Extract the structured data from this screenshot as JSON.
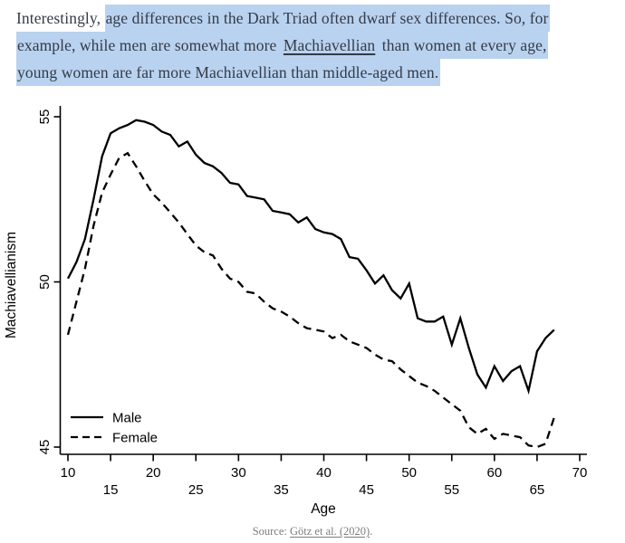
{
  "article": {
    "highlight_color": "#b9d2ef",
    "text_color": "#333b47",
    "lines": [
      {
        "segments": [
          {
            "text": "Interestingly, ",
            "highlight": false,
            "link": false
          },
          {
            "text": "age differences in the Dark Triad often dwarf sex differences. So, for",
            "highlight": true,
            "link": false
          }
        ]
      },
      {
        "segments": [
          {
            "text": "example, while men are somewhat more ",
            "highlight": true,
            "link": false
          },
          {
            "text": "Machiavellian",
            "highlight": true,
            "link": true
          },
          {
            "text": " than women at every age,",
            "highlight": true,
            "link": false
          }
        ]
      },
      {
        "segments": [
          {
            "text": "young women are far more Machiavellian than middle-aged men.",
            "highlight": true,
            "link": false
          }
        ]
      }
    ]
  },
  "chart_data": {
    "type": "line",
    "title": "",
    "xlabel": "Age",
    "ylabel": "Machiavellianism",
    "xlim": [
      10,
      70
    ],
    "ylim": [
      44.8,
      55.3
    ],
    "xticks": [
      10,
      15,
      20,
      25,
      30,
      35,
      40,
      45,
      50,
      55,
      60,
      65,
      70
    ],
    "yticks": [
      45,
      50,
      55
    ],
    "grid": false,
    "legend_position": "bottom-left",
    "line_color": "#000000",
    "x": [
      10,
      11,
      12,
      13,
      14,
      15,
      16,
      17,
      18,
      19,
      20,
      21,
      22,
      23,
      24,
      25,
      26,
      27,
      28,
      29,
      30,
      31,
      32,
      33,
      34,
      35,
      36,
      37,
      38,
      39,
      40,
      41,
      42,
      43,
      44,
      45,
      46,
      47,
      48,
      49,
      50,
      51,
      52,
      53,
      54,
      55,
      56,
      57,
      58,
      59,
      60,
      61,
      62,
      63,
      64,
      65,
      66,
      67
    ],
    "series": [
      {
        "name": "Male",
        "line_style": "solid",
        "values": [
          50.1,
          50.6,
          51.3,
          52.5,
          53.8,
          54.5,
          54.65,
          54.75,
          54.9,
          54.85,
          54.75,
          54.55,
          54.45,
          54.1,
          54.25,
          53.85,
          53.6,
          53.5,
          53.3,
          53.0,
          52.95,
          52.6,
          52.55,
          52.5,
          52.15,
          52.1,
          52.05,
          51.8,
          51.95,
          51.6,
          51.5,
          51.45,
          51.3,
          50.75,
          50.7,
          50.35,
          49.95,
          50.2,
          49.75,
          49.5,
          49.95,
          48.9,
          48.8,
          48.8,
          48.95,
          48.1,
          48.9,
          48.0,
          47.2,
          46.8,
          47.45,
          47.0,
          47.3,
          47.45,
          46.7,
          47.9,
          48.3,
          48.55
        ]
      },
      {
        "name": "Female",
        "line_style": "dashed",
        "values": [
          48.4,
          49.4,
          50.4,
          51.7,
          52.7,
          53.25,
          53.75,
          53.9,
          53.5,
          53.05,
          52.65,
          52.4,
          52.1,
          51.8,
          51.45,
          51.1,
          50.9,
          50.8,
          50.4,
          50.1,
          50.0,
          49.7,
          49.65,
          49.4,
          49.2,
          49.1,
          48.95,
          48.75,
          48.6,
          48.55,
          48.5,
          48.3,
          48.4,
          48.2,
          48.1,
          48.0,
          47.8,
          47.65,
          47.6,
          47.35,
          47.15,
          46.95,
          46.85,
          46.7,
          46.5,
          46.3,
          46.1,
          45.6,
          45.4,
          45.55,
          45.25,
          45.4,
          45.35,
          45.3,
          45.05,
          45.0,
          45.1,
          45.9
        ]
      }
    ]
  },
  "footer": {
    "prefix": "Source: ",
    "link": "Götz et al. (2020)",
    "suffix": "."
  }
}
